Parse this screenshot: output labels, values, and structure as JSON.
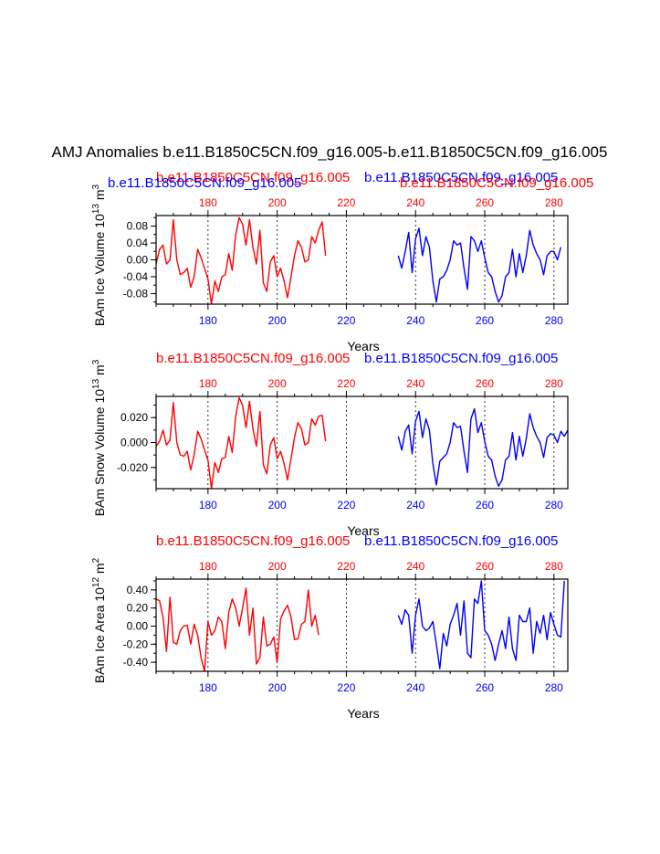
{
  "title": "AMJ Anomalies b.e11.B1850C5CN.f09_g16.005-b.e11.B1850C5CN.f09_g16.005",
  "colors": {
    "red": "#ff0000",
    "blue": "#0000ff",
    "axis": "#000000"
  },
  "chart_data": [
    {
      "type": "line",
      "ylabel_main": "BAm Ice Volume 10",
      "ylabel_exp": "13",
      "ylabel_unit": " m",
      "ylabel_unit_exp": "3",
      "xlabel": "Years",
      "top_case_red": "b.e11.B1850C5CN.f09_g16.005",
      "top_case_blue": "b.e11.B1850C5CN.f09_g16.005",
      "overlap_case_blue": "b.e11.B1850C5CN.f09_g16.005",
      "overlap_case_red": "b.e11.B1850C5CN.f09_g16.005",
      "xlim": [
        165,
        284
      ],
      "ylim": [
        -0.105,
        0.105
      ],
      "yticks": [
        0.08,
        0.04,
        0.0,
        -0.04,
        -0.08
      ],
      "ytick_labels": [
        "0.08",
        "0.04",
        "0.00",
        "-0.04",
        "-0.08"
      ],
      "top_xticks": [
        "180",
        "200",
        "220",
        "240",
        "260",
        "280"
      ],
      "bottom_xticks": [
        "180",
        "200",
        "220",
        "240",
        "260",
        "280"
      ],
      "series": [
        {
          "name": "b.e11.B1850C5CN.f09_g16.005",
          "color": "red",
          "x_start": 165,
          "values": [
            -0.01,
            0.025,
            0.035,
            -0.01,
            0.0,
            0.095,
            0.0,
            -0.035,
            -0.03,
            -0.02,
            -0.065,
            -0.04,
            0.025,
            0.005,
            -0.02,
            -0.045,
            -0.105,
            -0.05,
            -0.075,
            -0.04,
            -0.035,
            0.015,
            -0.025,
            0.06,
            0.1,
            0.085,
            0.035,
            0.095,
            0.03,
            -0.01,
            0.07,
            -0.055,
            -0.075,
            -0.005,
            0.01,
            -0.04,
            -0.02,
            -0.05,
            -0.09,
            -0.04,
            0.01,
            0.045,
            0.03,
            -0.005,
            0.0,
            0.055,
            0.04,
            0.07,
            0.09,
            0.01
          ]
        },
        {
          "name": "b.e11.B1850C5CN.f09_g16.005",
          "color": "blue",
          "x_start": 235,
          "values": [
            0.01,
            -0.02,
            0.02,
            0.065,
            -0.03,
            0.05,
            0.075,
            0.01,
            0.055,
            0.03,
            -0.05,
            -0.1,
            -0.045,
            -0.04,
            -0.025,
            0.0,
            0.045,
            0.035,
            0.04,
            -0.02,
            -0.07,
            0.055,
            0.045,
            0.02,
            0.045,
            0.005,
            -0.03,
            -0.04,
            -0.075,
            -0.1,
            -0.085,
            -0.04,
            -0.03,
            0.025,
            -0.04,
            0.015,
            -0.03,
            0.01,
            0.07,
            0.035,
            0.015,
            0.0,
            -0.035,
            0.01,
            0.02,
            0.02,
            0.0,
            0.03
          ]
        }
      ]
    },
    {
      "type": "line",
      "ylabel_main": "BAm Snow Volume 10",
      "ylabel_exp": "13",
      "ylabel_unit": " m",
      "ylabel_unit_exp": "3",
      "xlabel": "Years",
      "top_case_red": "b.e11.B1850C5CN.f09_g16.005",
      "top_case_blue": "b.e11.B1850C5CN.f09_g16.005",
      "xlim": [
        165,
        284
      ],
      "ylim": [
        -0.037,
        0.037
      ],
      "yticks": [
        0.02,
        0.0,
        -0.02
      ],
      "ytick_labels": [
        "0.020",
        "0.000",
        "-0.020"
      ],
      "top_xticks": [
        "180",
        "200",
        "220",
        "240",
        "260",
        "280"
      ],
      "bottom_xticks": [
        "180",
        "200",
        "220",
        "240",
        "260",
        "280"
      ],
      "series": [
        {
          "name": "b.e11.B1850C5CN.f09_g16.005",
          "color": "red",
          "x_start": 165,
          "values": [
            -0.003,
            0.001,
            0.01,
            -0.002,
            0.002,
            0.032,
            0.0,
            -0.01,
            -0.011,
            -0.007,
            -0.022,
            -0.01,
            0.009,
            0.003,
            -0.006,
            -0.014,
            -0.037,
            -0.016,
            -0.024,
            -0.013,
            -0.012,
            0.005,
            -0.008,
            0.021,
            0.036,
            0.03,
            0.012,
            0.033,
            0.011,
            -0.003,
            0.025,
            -0.018,
            -0.025,
            -0.002,
            0.004,
            -0.013,
            -0.007,
            -0.017,
            -0.03,
            -0.013,
            0.004,
            0.016,
            0.011,
            -0.002,
            0.0,
            0.019,
            0.014,
            0.021,
            0.022,
            0.001
          ]
        },
        {
          "name": "b.e11.B1850C5CN.f09_g16.005",
          "color": "blue",
          "x_start": 235,
          "values": [
            0.005,
            -0.006,
            0.009,
            0.014,
            -0.009,
            0.017,
            0.025,
            0.004,
            0.019,
            0.01,
            -0.017,
            -0.034,
            -0.015,
            -0.012,
            -0.009,
            0.0,
            0.016,
            0.012,
            0.013,
            -0.007,
            -0.024,
            0.019,
            0.027,
            0.008,
            0.016,
            0.001,
            -0.011,
            -0.014,
            -0.027,
            -0.035,
            -0.03,
            -0.014,
            -0.011,
            0.008,
            -0.014,
            0.005,
            -0.011,
            0.003,
            0.023,
            0.012,
            0.005,
            0.0,
            -0.012,
            0.004,
            0.007,
            0.006,
            0.0,
            0.009,
            0.005,
            0.01
          ]
        }
      ]
    },
    {
      "type": "line",
      "ylabel_main": "BAm Ice Area 10",
      "ylabel_exp": "12",
      "ylabel_unit": " m",
      "ylabel_unit_exp": "2",
      "xlabel": "Years",
      "top_case_red": "b.e11.B1850C5CN.f09_g16.005",
      "top_case_blue": "b.e11.B1850C5CN.f09_g16.005",
      "xlim": [
        165,
        284
      ],
      "ylim": [
        -0.5,
        0.52
      ],
      "yticks": [
        0.4,
        0.2,
        0.0,
        -0.2,
        -0.4
      ],
      "ytick_labels": [
        "0.40",
        "0.20",
        "0.00",
        "-0.20",
        "-0.40"
      ],
      "top_xticks": [
        "180",
        "200",
        "220",
        "240",
        "260",
        "280"
      ],
      "bottom_xticks": [
        "180",
        "200",
        "220",
        "240",
        "260",
        "280"
      ],
      "series": [
        {
          "name": "b.e11.B1850C5CN.f09_g16.005",
          "color": "red",
          "x_start": 165,
          "values": [
            0.3,
            0.28,
            0.1,
            -0.28,
            0.32,
            -0.18,
            -0.2,
            -0.05,
            0.0,
            0.01,
            -0.2,
            0.02,
            -0.1,
            -0.35,
            -0.5,
            0.05,
            -0.1,
            -0.05,
            0.1,
            0.05,
            -0.25,
            0.15,
            0.3,
            0.2,
            0.0,
            0.2,
            0.42,
            -0.1,
            0.2,
            -0.42,
            -0.35,
            0.1,
            -0.22,
            -0.2,
            -0.12,
            -0.4,
            0.08,
            0.17,
            0.23,
            0.1,
            -0.15,
            -0.14,
            0.02,
            0.05,
            0.4,
            0.0,
            0.12,
            -0.1
          ]
        },
        {
          "name": "b.e11.B1850C5CN.f09_g16.005",
          "color": "blue",
          "x_start": 235,
          "values": [
            0.12,
            0.02,
            0.18,
            0.12,
            -0.3,
            0.12,
            0.3,
            0.0,
            -0.05,
            -0.02,
            0.05,
            -0.2,
            -0.47,
            -0.08,
            -0.22,
            0.02,
            0.12,
            0.25,
            -0.1,
            0.28,
            -0.3,
            -0.35,
            0.3,
            0.25,
            0.5,
            -0.05,
            -0.1,
            -0.2,
            -0.38,
            -0.2,
            -0.05,
            -0.25,
            0.1,
            -0.25,
            -0.38,
            0.12,
            0.05,
            0.05,
            0.2,
            -0.3,
            0.05,
            -0.08,
            0.12,
            -0.15,
            0.15,
            0.02,
            -0.1,
            -0.12,
            0.5
          ]
        }
      ]
    }
  ]
}
